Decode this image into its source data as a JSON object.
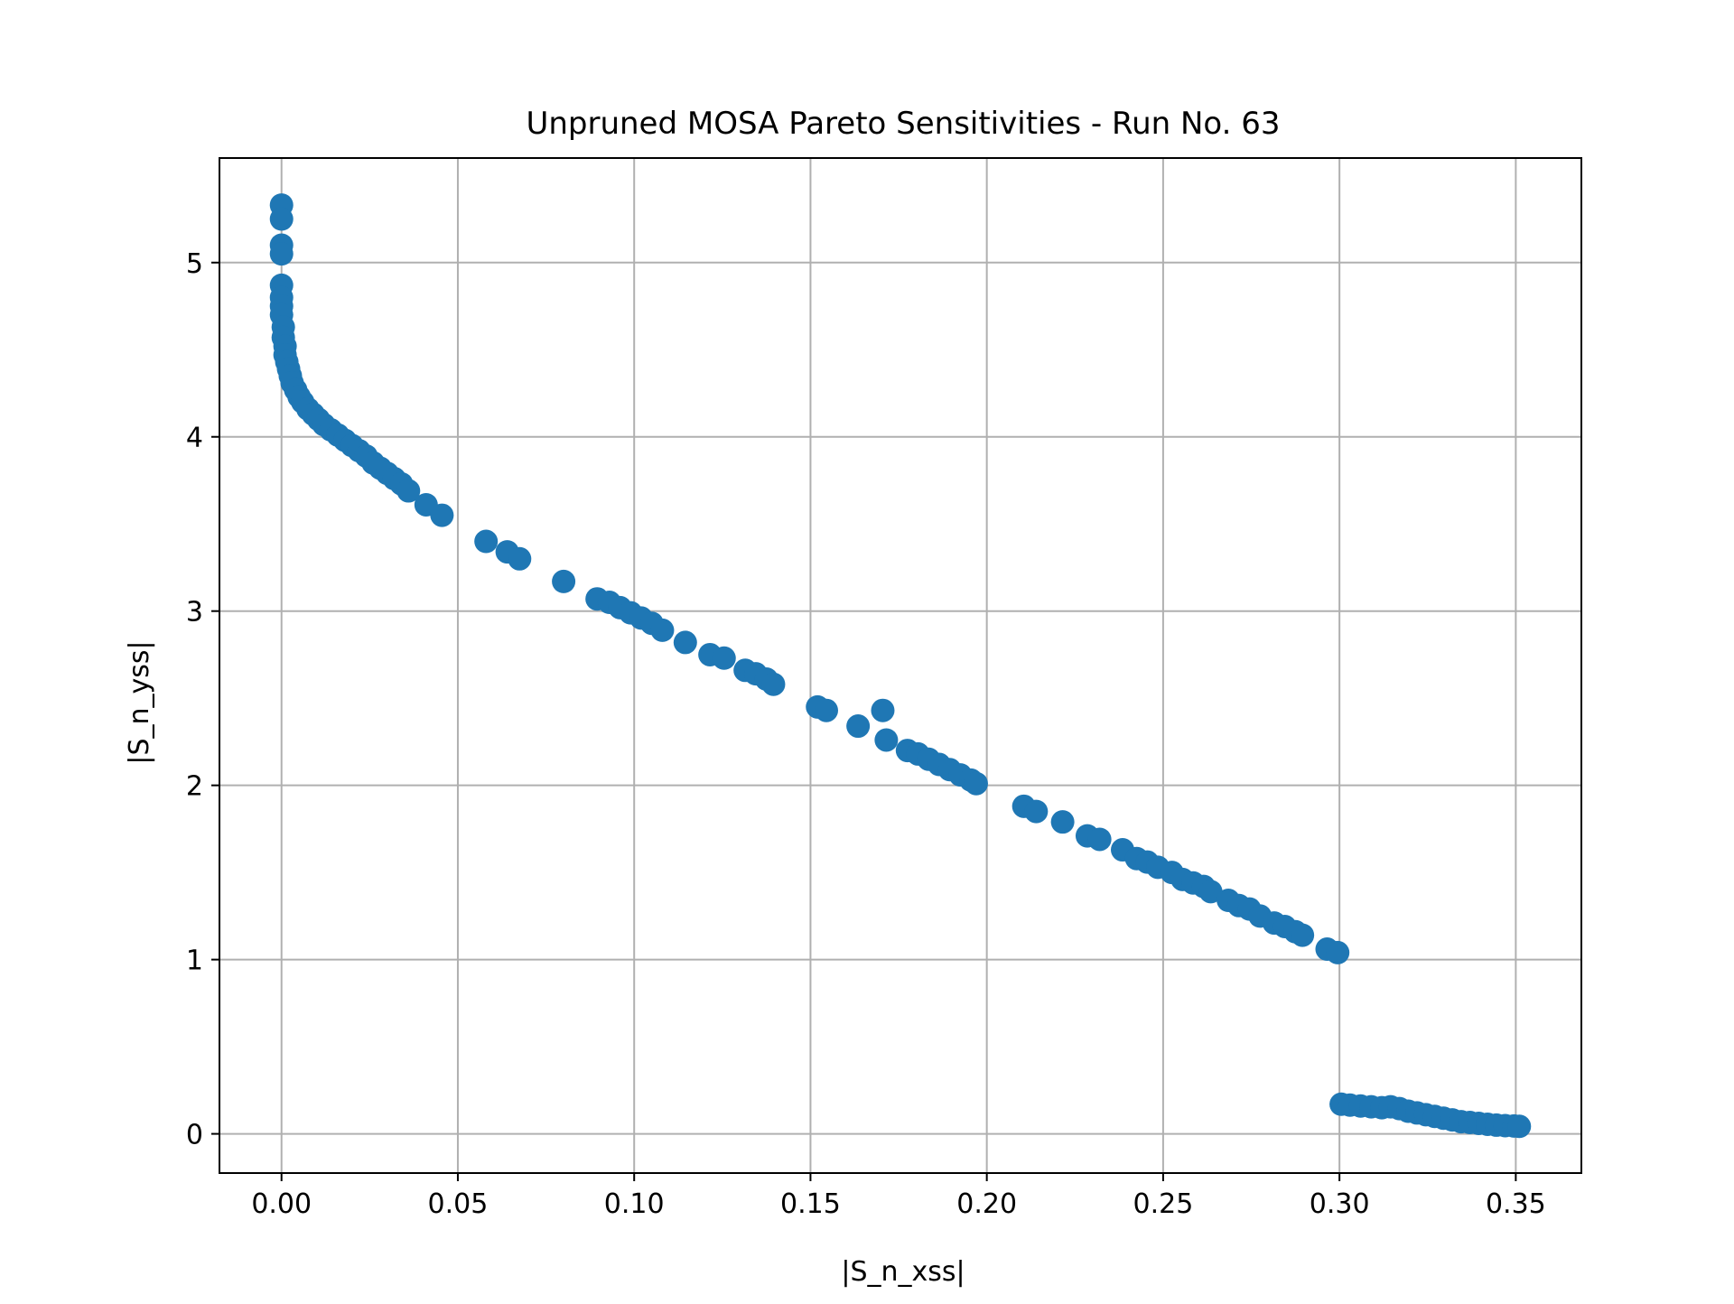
{
  "chart_data": {
    "type": "scatter",
    "title": "Unpruned MOSA Pareto Sensitivities - Run No. 63",
    "xlabel": "|S_n_xss|",
    "ylabel": "|S_n_yss|",
    "xlim": [
      -0.0176,
      0.3686
    ],
    "ylim": [
      -0.225,
      5.6
    ],
    "xticks": [
      0.0,
      0.05,
      0.1,
      0.15,
      0.2,
      0.25,
      0.3,
      0.35
    ],
    "xtick_labels": [
      "0.00",
      "0.05",
      "0.10",
      "0.15",
      "0.20",
      "0.25",
      "0.30",
      "0.35"
    ],
    "yticks": [
      0,
      1,
      2,
      3,
      4,
      5
    ],
    "ytick_labels": [
      "0",
      "1",
      "2",
      "3",
      "4",
      "5"
    ],
    "grid": true,
    "marker_color": "#1f77b4",
    "series": [
      {
        "points": [
          [
            0.0,
            5.33
          ],
          [
            0.0,
            5.25
          ],
          [
            0.0,
            5.1
          ],
          [
            0.0,
            5.05
          ],
          [
            0.0,
            4.87
          ],
          [
            0.0,
            4.8
          ],
          [
            0.0,
            4.75
          ],
          [
            0.0,
            4.7
          ],
          [
            0.0005,
            4.63
          ],
          [
            0.0005,
            4.57
          ],
          [
            0.001,
            4.52
          ],
          [
            0.001,
            4.47
          ],
          [
            0.0015,
            4.43
          ],
          [
            0.002,
            4.39
          ],
          [
            0.0025,
            4.35
          ],
          [
            0.003,
            4.31
          ],
          [
            0.004,
            4.27
          ],
          [
            0.005,
            4.23
          ],
          [
            0.006,
            4.2
          ],
          [
            0.0075,
            4.16
          ],
          [
            0.009,
            4.13
          ],
          [
            0.0105,
            4.1
          ],
          [
            0.012,
            4.07
          ],
          [
            0.014,
            4.04
          ],
          [
            0.016,
            4.01
          ],
          [
            0.018,
            3.98
          ],
          [
            0.02,
            3.95
          ],
          [
            0.022,
            3.92
          ],
          [
            0.024,
            3.89
          ],
          [
            0.026,
            3.85
          ],
          [
            0.028,
            3.82
          ],
          [
            0.03,
            3.79
          ],
          [
            0.032,
            3.76
          ],
          [
            0.034,
            3.73
          ],
          [
            0.036,
            3.69
          ],
          [
            0.041,
            3.61
          ],
          [
            0.0455,
            3.55
          ],
          [
            0.058,
            3.4
          ],
          [
            0.064,
            3.34
          ],
          [
            0.0675,
            3.3
          ],
          [
            0.08,
            3.17
          ],
          [
            0.0895,
            3.07
          ],
          [
            0.093,
            3.05
          ],
          [
            0.096,
            3.02
          ],
          [
            0.099,
            2.99
          ],
          [
            0.102,
            2.96
          ],
          [
            0.105,
            2.93
          ],
          [
            0.108,
            2.89
          ],
          [
            0.1145,
            2.82
          ],
          [
            0.1215,
            2.75
          ],
          [
            0.1255,
            2.73
          ],
          [
            0.1315,
            2.66
          ],
          [
            0.1345,
            2.64
          ],
          [
            0.1375,
            2.61
          ],
          [
            0.1395,
            2.58
          ],
          [
            0.152,
            2.45
          ],
          [
            0.1545,
            2.43
          ],
          [
            0.1635,
            2.34
          ],
          [
            0.1705,
            2.43
          ],
          [
            0.1715,
            2.26
          ],
          [
            0.1775,
            2.2
          ],
          [
            0.1805,
            2.18
          ],
          [
            0.1835,
            2.15
          ],
          [
            0.1865,
            2.12
          ],
          [
            0.1895,
            2.09
          ],
          [
            0.1925,
            2.06
          ],
          [
            0.1955,
            2.03
          ],
          [
            0.197,
            2.01
          ],
          [
            0.2105,
            1.88
          ],
          [
            0.214,
            1.85
          ],
          [
            0.2215,
            1.79
          ],
          [
            0.2285,
            1.71
          ],
          [
            0.232,
            1.69
          ],
          [
            0.2385,
            1.63
          ],
          [
            0.2425,
            1.58
          ],
          [
            0.2455,
            1.56
          ],
          [
            0.2485,
            1.53
          ],
          [
            0.2525,
            1.5
          ],
          [
            0.2555,
            1.46
          ],
          [
            0.2585,
            1.44
          ],
          [
            0.2615,
            1.42
          ],
          [
            0.2635,
            1.39
          ],
          [
            0.2685,
            1.34
          ],
          [
            0.2715,
            1.31
          ],
          [
            0.2745,
            1.29
          ],
          [
            0.2775,
            1.25
          ],
          [
            0.2815,
            1.21
          ],
          [
            0.2845,
            1.19
          ],
          [
            0.2875,
            1.16
          ],
          [
            0.2895,
            1.14
          ],
          [
            0.2965,
            1.06
          ],
          [
            0.2995,
            1.04
          ],
          [
            0.3005,
            0.17
          ],
          [
            0.303,
            0.165
          ],
          [
            0.306,
            0.16
          ],
          [
            0.309,
            0.155
          ],
          [
            0.312,
            0.15
          ],
          [
            0.3145,
            0.155
          ],
          [
            0.317,
            0.145
          ],
          [
            0.3195,
            0.13
          ],
          [
            0.322,
            0.12
          ],
          [
            0.3245,
            0.11
          ],
          [
            0.327,
            0.1
          ],
          [
            0.3295,
            0.09
          ],
          [
            0.332,
            0.08
          ],
          [
            0.3345,
            0.07
          ],
          [
            0.337,
            0.065
          ],
          [
            0.3395,
            0.06
          ],
          [
            0.342,
            0.055
          ],
          [
            0.3445,
            0.05
          ],
          [
            0.347,
            0.047
          ],
          [
            0.3495,
            0.045
          ],
          [
            0.351,
            0.043
          ]
        ]
      }
    ]
  }
}
